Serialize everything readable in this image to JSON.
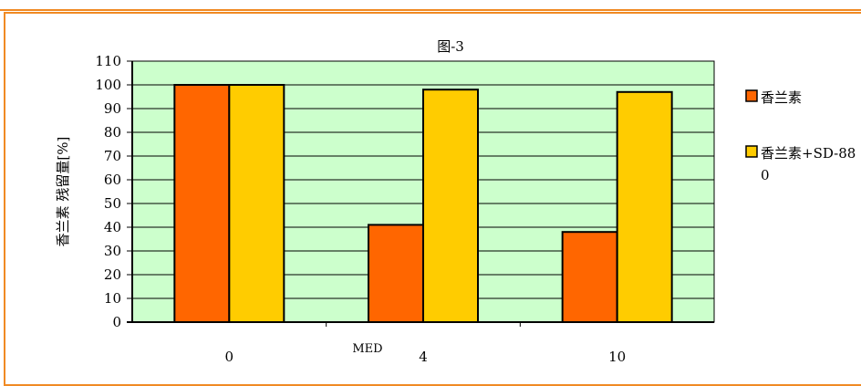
{
  "chart_data": {
    "type": "bar",
    "title": "图-3",
    "xlabel": "MED",
    "ylabel": "香兰素 残留量[%]",
    "categories": [
      "0",
      "4",
      "10"
    ],
    "series": [
      {
        "name": "香兰素",
        "values": [
          100,
          41,
          38
        ],
        "color": "#ff6600"
      },
      {
        "name": "香兰素+SD-880",
        "values": [
          100,
          98,
          97
        ],
        "color": "#ffcc00"
      }
    ],
    "ylim": [
      0,
      110
    ],
    "yticks": [
      0,
      10,
      20,
      30,
      40,
      50,
      60,
      70,
      80,
      90,
      100,
      110
    ],
    "grid": true,
    "plot_background": "#ccffcc",
    "frame_color": "#f08a24",
    "legend_position": "right"
  }
}
